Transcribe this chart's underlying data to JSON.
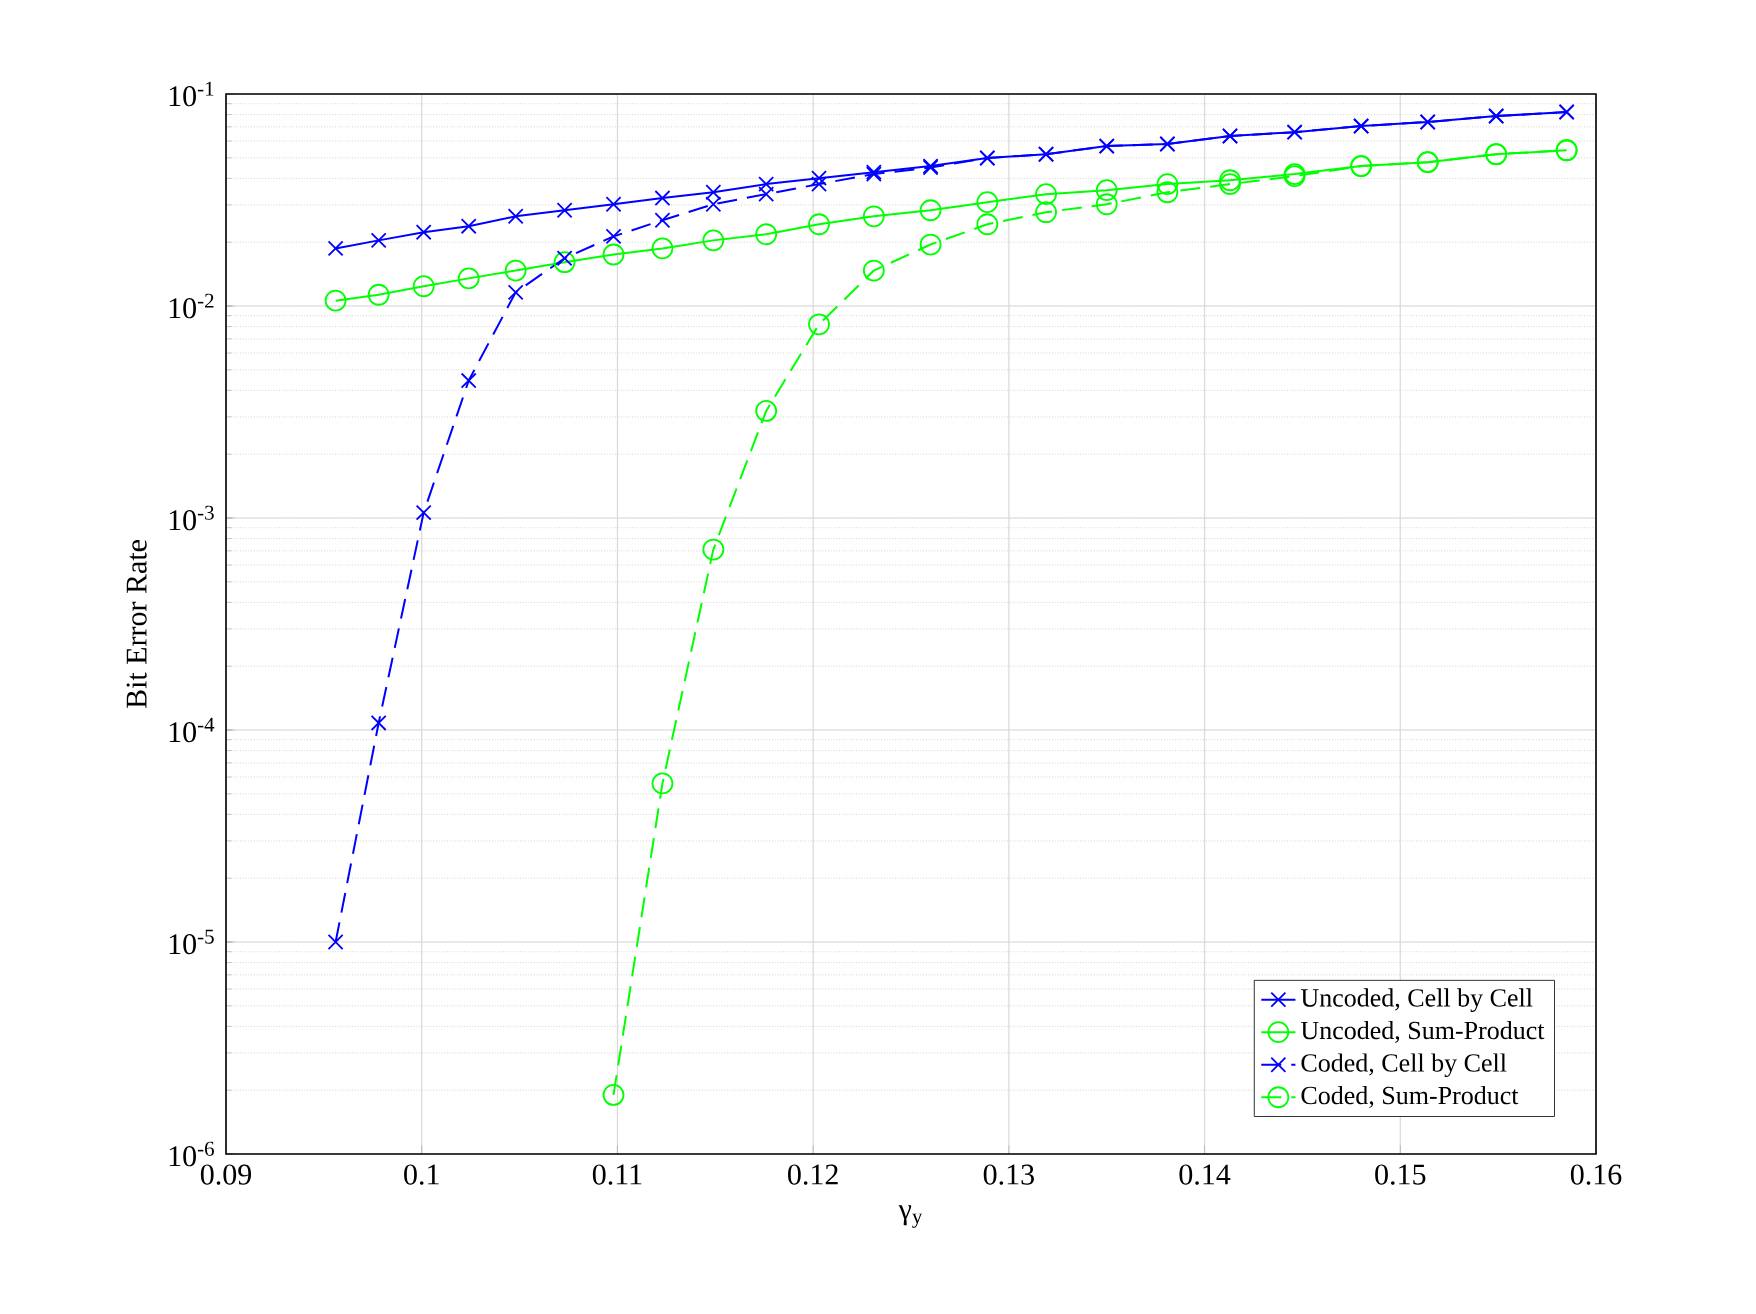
{
  "chart_data": {
    "type": "line",
    "xlabel": "γ$_{y}$",
    "ylabel": "Bit Error Rate",
    "log": "y",
    "grid": true,
    "legend": "bottom right",
    "x": [
      0.0956,
      0.0978,
      0.1001,
      0.1024,
      0.1048,
      0.1073,
      0.1098,
      0.1123,
      0.1149,
      0.1176,
      0.1203,
      0.1231,
      0.126,
      0.1289,
      0.1319,
      0.135,
      0.1381,
      0.1413,
      0.1446,
      0.148,
      0.1514,
      0.1549,
      0.1585
    ],
    "xlim": [
      0.09,
      0.16
    ],
    "xticks": [
      0.09,
      0.1,
      0.11,
      0.12,
      0.13,
      0.14,
      0.15,
      0.16
    ],
    "ylim": [
      1e-06,
      0.1
    ],
    "yticks": [
      {
        "value": 1e-06,
        "label": "10$^{-6}$"
      },
      {
        "value": 1e-05,
        "label": "10$^{-5}$"
      },
      {
        "value": 0.0001,
        "label": "10$^{-4}$"
      },
      {
        "value": 0.001,
        "label": "10$^{-3}$"
      },
      {
        "value": 0.01,
        "label": "10$^{-2}$"
      },
      {
        "value": 0.1,
        "label": "10$^{-1}$"
      }
    ],
    "series": [
      {
        "name": "Uncoded, Cell by Cell",
        "color": "#0000ff",
        "marker": "cross",
        "line_style": "solid",
        "values": [
          0.0187,
          0.0204,
          0.0223,
          0.0238,
          0.0265,
          0.0283,
          0.0302,
          0.0323,
          0.0344,
          0.0376,
          0.0401,
          0.0428,
          0.0457,
          0.0499,
          0.052,
          0.0568,
          0.0581,
          0.0634,
          0.0661,
          0.0706,
          0.0738,
          0.0787,
          0.0822
        ]
      },
      {
        "name": "Uncoded, Sum-Product",
        "color": "#00ff00",
        "marker": "circle",
        "line_style": "solid",
        "values": [
          0.0106,
          0.0113,
          0.0124,
          0.0135,
          0.0147,
          0.0161,
          0.0175,
          0.0187,
          0.0204,
          0.0218,
          0.0243,
          0.0265,
          0.0283,
          0.0309,
          0.0337,
          0.0352,
          0.0376,
          0.0392,
          0.0419,
          0.0457,
          0.0477,
          0.052,
          0.0543
        ]
      },
      {
        "name": "Coded, Cell by Cell",
        "color": "#0000ff",
        "marker": "cross",
        "line_style": "dashed",
        "values": [
          1e-05,
          0.000108,
          0.00106,
          0.00445,
          0.0116,
          0.0168,
          0.0213,
          0.0254,
          0.0302,
          0.0337,
          0.0376,
          0.0419,
          0.045,
          0.0499,
          0.052,
          0.0568,
          0.0581,
          0.0634,
          0.0661,
          0.0706,
          0.0738,
          0.0787,
          0.0822
        ]
      },
      {
        "name": "Coded, Sum-Product",
        "color": "#00ff00",
        "marker": "circle",
        "line_style": "dashed",
        "values": [
          null,
          null,
          null,
          null,
          null,
          null,
          1.9e-06,
          5.6e-05,
          0.00071,
          0.0032,
          0.0082,
          0.0147,
          0.0195,
          0.0243,
          0.0277,
          0.0302,
          0.0344,
          0.0376,
          0.041,
          0.0457,
          0.0477,
          0.052,
          0.0543
        ]
      }
    ]
  }
}
